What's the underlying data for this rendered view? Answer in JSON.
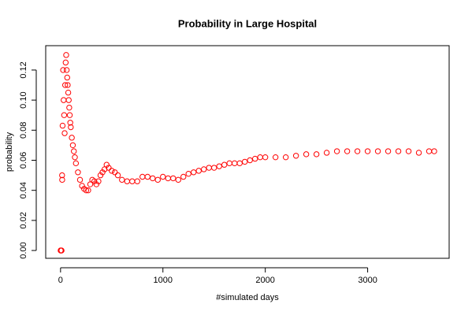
{
  "chart_data": {
    "type": "scatter",
    "title": "Probability in Large Hospital",
    "x_label": "#simulated days",
    "y_label": "probability",
    "xlim": [
      -145,
      3796
    ],
    "ylim": [
      -0.0052,
      0.1362
    ],
    "xticks": [
      0,
      1000,
      2000,
      3000
    ],
    "yticks": [
      {
        "value": 0,
        "label": "0.00"
      },
      {
        "value": 0.02,
        "label": "0.02"
      },
      {
        "value": 0.04,
        "label": "0.04"
      },
      {
        "value": 0.06,
        "label": "0.06"
      },
      {
        "value": 0.08,
        "label": "0.08"
      },
      {
        "value": 0.1,
        "label": "0.10"
      },
      {
        "value": 0.12,
        "label": "0.12"
      }
    ],
    "color": "#ff0000",
    "x": [
      1,
      2,
      5,
      10,
      15,
      16,
      20,
      25,
      30,
      35,
      40,
      45,
      50,
      55,
      60,
      65,
      70,
      75,
      80,
      85,
      90,
      95,
      100,
      110,
      120,
      130,
      140,
      150,
      170,
      190,
      210,
      230,
      250,
      270,
      290,
      310,
      330,
      350,
      370,
      390,
      410,
      430,
      450,
      470,
      500,
      530,
      560,
      600,
      650,
      700,
      750,
      800,
      850,
      900,
      950,
      1000,
      1050,
      1100,
      1150,
      1200,
      1250,
      1300,
      1350,
      1400,
      1450,
      1500,
      1550,
      1600,
      1650,
      1700,
      1750,
      1800,
      1850,
      1900,
      1950,
      2000,
      2100,
      2200,
      2300,
      2400,
      2500,
      2600,
      2700,
      2800,
      2900,
      3000,
      3100,
      3200,
      3300,
      3400,
      3500,
      3600,
      3650
    ],
    "values": [
      0,
      0,
      0,
      0,
      0.05,
      0.047,
      0.083,
      0.12,
      0.1,
      0.09,
      0.078,
      0.11,
      0.125,
      0.13,
      0.12,
      0.115,
      0.11,
      0.105,
      0.1,
      0.095,
      0.09,
      0.085,
      0.082,
      0.075,
      0.07,
      0.066,
      0.062,
      0.058,
      0.052,
      0.047,
      0.043,
      0.041,
      0.04,
      0.04,
      0.044,
      0.047,
      0.046,
      0.044,
      0.046,
      0.05,
      0.052,
      0.054,
      0.057,
      0.055,
      0.053,
      0.052,
      0.05,
      0.047,
      0.046,
      0.046,
      0.046,
      0.049,
      0.049,
      0.048,
      0.047,
      0.049,
      0.048,
      0.048,
      0.047,
      0.049,
      0.051,
      0.052,
      0.053,
      0.054,
      0.055,
      0.055,
      0.056,
      0.057,
      0.058,
      0.058,
      0.058,
      0.059,
      0.06,
      0.061,
      0.062,
      0.062,
      0.062,
      0.062,
      0.063,
      0.064,
      0.064,
      0.065,
      0.066,
      0.066,
      0.066,
      0.066,
      0.066,
      0.066,
      0.066,
      0.066,
      0.065,
      0.066,
      0.066
    ]
  }
}
